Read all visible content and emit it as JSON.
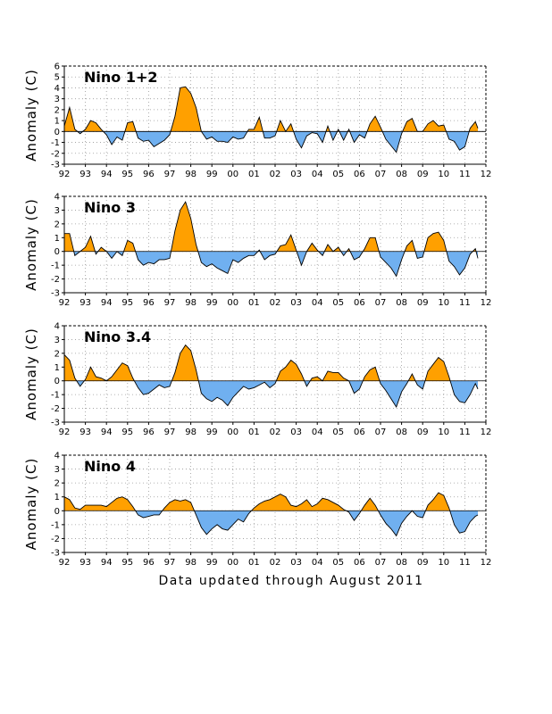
{
  "footer": "Data updated through August 2011",
  "colors": {
    "positive": "#ffa000",
    "negative": "#70b0f0",
    "line": "#000000",
    "grid": "#999999"
  },
  "chart_data": [
    {
      "type": "area",
      "title": "Nino 1+2",
      "ylabel": "Anomaly (C)",
      "ylim": [
        -3,
        6
      ],
      "yticks": [
        -3,
        -2,
        -1,
        0,
        1,
        2,
        3,
        4,
        5,
        6
      ],
      "xlim": [
        1992,
        2012
      ],
      "xticks": [
        "92",
        "93",
        "94",
        "95",
        "96",
        "97",
        "98",
        "99",
        "00",
        "01",
        "02",
        "03",
        "04",
        "05",
        "06",
        "07",
        "08",
        "09",
        "10",
        "11",
        "12"
      ],
      "grid": true,
      "x": [
        1992.0,
        1992.25,
        1992.5,
        1992.75,
        1993.0,
        1993.25,
        1993.5,
        1993.75,
        1994.0,
        1994.25,
        1994.5,
        1994.75,
        1995.0,
        1995.25,
        1995.5,
        1995.75,
        1996.0,
        1996.25,
        1996.5,
        1996.75,
        1997.0,
        1997.25,
        1997.5,
        1997.75,
        1998.0,
        1998.25,
        1998.5,
        1998.75,
        1999.0,
        1999.25,
        1999.5,
        1999.75,
        2000.0,
        2000.25,
        2000.5,
        2000.75,
        2001.0,
        2001.25,
        2001.5,
        2001.75,
        2002.0,
        2002.25,
        2002.5,
        2002.75,
        2003.0,
        2003.25,
        2003.5,
        2003.75,
        2004.0,
        2004.25,
        2004.5,
        2004.75,
        2005.0,
        2005.25,
        2005.5,
        2005.75,
        2006.0,
        2006.25,
        2006.5,
        2006.75,
        2007.0,
        2007.25,
        2007.5,
        2007.75,
        2008.0,
        2008.25,
        2008.5,
        2008.75,
        2009.0,
        2009.25,
        2009.5,
        2009.75,
        2010.0,
        2010.25,
        2010.5,
        2010.75,
        2011.0,
        2011.25,
        2011.5,
        2011.62
      ],
      "y": [
        0.5,
        2.2,
        0.2,
        -0.2,
        0.2,
        1.0,
        0.8,
        0.2,
        -0.3,
        -1.2,
        -0.5,
        -0.8,
        0.8,
        0.9,
        -0.6,
        -0.9,
        -0.8,
        -1.4,
        -1.1,
        -0.8,
        -0.3,
        1.4,
        4.0,
        4.1,
        3.5,
        2.2,
        0.0,
        -0.7,
        -0.5,
        -0.9,
        -0.9,
        -1.0,
        -0.5,
        -0.7,
        -0.6,
        0.2,
        0.2,
        1.3,
        -0.6,
        -0.6,
        -0.4,
        1.0,
        0.0,
        0.7,
        -0.7,
        -1.5,
        -0.4,
        -0.1,
        -0.2,
        -1.0,
        0.5,
        -0.8,
        0.2,
        -0.8,
        0.2,
        -1.0,
        -0.3,
        -0.6,
        0.7,
        1.4,
        0.4,
        -0.7,
        -1.3,
        -1.9,
        -0.2,
        0.9,
        1.2,
        0.0,
        0.0,
        0.7,
        1.0,
        0.5,
        0.6,
        -0.7,
        -0.9,
        -1.7,
        -1.4,
        0.3,
        0.9,
        0.3
      ]
    },
    {
      "type": "area",
      "title": "Nino 3",
      "ylabel": "Anomaly (C)",
      "ylim": [
        -3,
        4
      ],
      "yticks": [
        -3,
        -2,
        -1,
        0,
        1,
        2,
        3,
        4
      ],
      "xlim": [
        1992,
        2012
      ],
      "xticks": [
        "92",
        "93",
        "94",
        "95",
        "96",
        "97",
        "98",
        "99",
        "00",
        "01",
        "02",
        "03",
        "04",
        "05",
        "06",
        "07",
        "08",
        "09",
        "10",
        "11",
        "12"
      ],
      "grid": true,
      "x": [
        1992.0,
        1992.25,
        1992.5,
        1992.75,
        1993.0,
        1993.25,
        1993.5,
        1993.75,
        1994.0,
        1994.25,
        1994.5,
        1994.75,
        1995.0,
        1995.25,
        1995.5,
        1995.75,
        1996.0,
        1996.25,
        1996.5,
        1996.75,
        1997.0,
        1997.25,
        1997.5,
        1997.75,
        1998.0,
        1998.25,
        1998.5,
        1998.75,
        1999.0,
        1999.25,
        1999.5,
        1999.75,
        2000.0,
        2000.25,
        2000.5,
        2000.75,
        2001.0,
        2001.25,
        2001.5,
        2001.75,
        2002.0,
        2002.25,
        2002.5,
        2002.75,
        2003.0,
        2003.25,
        2003.5,
        2003.75,
        2004.0,
        2004.25,
        2004.5,
        2004.75,
        2005.0,
        2005.25,
        2005.5,
        2005.75,
        2006.0,
        2006.25,
        2006.5,
        2006.75,
        2007.0,
        2007.25,
        2007.5,
        2007.75,
        2008.0,
        2008.25,
        2008.5,
        2008.75,
        2009.0,
        2009.25,
        2009.5,
        2009.75,
        2010.0,
        2010.25,
        2010.5,
        2010.75,
        2011.0,
        2011.25,
        2011.5,
        2011.62
      ],
      "y": [
        1.3,
        1.3,
        -0.3,
        0.0,
        0.3,
        1.1,
        -0.2,
        0.3,
        0.0,
        -0.5,
        0.0,
        -0.3,
        0.8,
        0.6,
        -0.6,
        -1.0,
        -0.8,
        -0.9,
        -0.6,
        -0.6,
        -0.5,
        1.5,
        3.0,
        3.6,
        2.4,
        0.5,
        -0.8,
        -1.1,
        -0.9,
        -1.2,
        -1.4,
        -1.6,
        -0.6,
        -0.8,
        -0.5,
        -0.3,
        -0.3,
        0.1,
        -0.6,
        -0.3,
        -0.2,
        0.4,
        0.5,
        1.2,
        0.1,
        -1.0,
        0.0,
        0.6,
        0.1,
        -0.3,
        0.5,
        0.0,
        0.3,
        -0.3,
        0.2,
        -0.6,
        -0.4,
        0.2,
        1.0,
        1.0,
        -0.4,
        -0.8,
        -1.2,
        -1.8,
        -0.6,
        0.4,
        0.8,
        -0.5,
        -0.4,
        1.0,
        1.3,
        1.4,
        0.8,
        -0.7,
        -1.1,
        -1.7,
        -1.2,
        -0.2,
        0.2,
        -0.5
      ]
    },
    {
      "type": "area",
      "title": "Nino 3.4",
      "ylabel": "Anomaly (C)",
      "ylim": [
        -3,
        4
      ],
      "yticks": [
        -3,
        -2,
        -1,
        0,
        1,
        2,
        3,
        4
      ],
      "xlim": [
        1992,
        2012
      ],
      "xticks": [
        "92",
        "93",
        "94",
        "95",
        "96",
        "97",
        "98",
        "99",
        "00",
        "01",
        "02",
        "03",
        "04",
        "05",
        "06",
        "07",
        "08",
        "09",
        "10",
        "11",
        "12"
      ],
      "grid": true,
      "x": [
        1992.0,
        1992.25,
        1992.5,
        1992.75,
        1993.0,
        1993.25,
        1993.5,
        1993.75,
        1994.0,
        1994.25,
        1994.5,
        1994.75,
        1995.0,
        1995.25,
        1995.5,
        1995.75,
        1996.0,
        1996.25,
        1996.5,
        1996.75,
        1997.0,
        1997.25,
        1997.5,
        1997.75,
        1998.0,
        1998.25,
        1998.5,
        1998.75,
        1999.0,
        1999.25,
        1999.5,
        1999.75,
        2000.0,
        2000.25,
        2000.5,
        2000.75,
        2001.0,
        2001.25,
        2001.5,
        2001.75,
        2002.0,
        2002.25,
        2002.5,
        2002.75,
        2003.0,
        2003.25,
        2003.5,
        2003.75,
        2004.0,
        2004.25,
        2004.5,
        2004.75,
        2005.0,
        2005.25,
        2005.5,
        2005.75,
        2006.0,
        2006.25,
        2006.5,
        2006.75,
        2007.0,
        2007.25,
        2007.5,
        2007.75,
        2008.0,
        2008.25,
        2008.5,
        2008.75,
        2009.0,
        2009.25,
        2009.5,
        2009.75,
        2010.0,
        2010.25,
        2010.5,
        2010.75,
        2011.0,
        2011.25,
        2011.5,
        2011.62
      ],
      "y": [
        1.9,
        1.5,
        0.2,
        -0.4,
        0.1,
        1.0,
        0.3,
        0.2,
        0.0,
        0.3,
        0.8,
        1.3,
        1.1,
        0.2,
        -0.5,
        -1.0,
        -0.9,
        -0.6,
        -0.3,
        -0.5,
        -0.4,
        0.6,
        2.0,
        2.6,
        2.2,
        0.8,
        -0.9,
        -1.3,
        -1.5,
        -1.2,
        -1.4,
        -1.8,
        -1.2,
        -0.8,
        -0.4,
        -0.6,
        -0.5,
        -0.3,
        -0.1,
        -0.5,
        -0.2,
        0.7,
        1.0,
        1.5,
        1.2,
        0.5,
        -0.4,
        0.2,
        0.3,
        0.0,
        0.7,
        0.6,
        0.6,
        0.2,
        0.0,
        -0.9,
        -0.6,
        0.3,
        0.8,
        1.0,
        -0.2,
        -0.7,
        -1.3,
        -1.9,
        -0.8,
        -0.2,
        0.5,
        -0.3,
        -0.6,
        0.7,
        1.2,
        1.7,
        1.4,
        0.3,
        -1.0,
        -1.5,
        -1.6,
        -1.0,
        -0.2,
        -0.6
      ]
    },
    {
      "type": "area",
      "title": "Nino 4",
      "ylabel": "Anomaly (C)",
      "ylim": [
        -3,
        4
      ],
      "yticks": [
        -3,
        -2,
        -1,
        0,
        1,
        2,
        3,
        4
      ],
      "xlim": [
        1992,
        2012
      ],
      "xticks": [
        "92",
        "93",
        "94",
        "95",
        "96",
        "97",
        "98",
        "99",
        "00",
        "01",
        "02",
        "03",
        "04",
        "05",
        "06",
        "07",
        "08",
        "09",
        "10",
        "11",
        "12"
      ],
      "grid": true,
      "x": [
        1992.0,
        1992.25,
        1992.5,
        1992.75,
        1993.0,
        1993.25,
        1993.5,
        1993.75,
        1994.0,
        1994.25,
        1994.5,
        1994.75,
        1995.0,
        1995.25,
        1995.5,
        1995.75,
        1996.0,
        1996.25,
        1996.5,
        1996.75,
        1997.0,
        1997.25,
        1997.5,
        1997.75,
        1998.0,
        1998.25,
        1998.5,
        1998.75,
        1999.0,
        1999.25,
        1999.5,
        1999.75,
        2000.0,
        2000.25,
        2000.5,
        2000.75,
        2001.0,
        2001.25,
        2001.5,
        2001.75,
        2002.0,
        2002.25,
        2002.5,
        2002.75,
        2003.0,
        2003.25,
        2003.5,
        2003.75,
        2004.0,
        2004.25,
        2004.5,
        2004.75,
        2005.0,
        2005.25,
        2005.5,
        2005.75,
        2006.0,
        2006.25,
        2006.5,
        2006.75,
        2007.0,
        2007.25,
        2007.5,
        2007.75,
        2008.0,
        2008.25,
        2008.5,
        2008.75,
        2009.0,
        2009.25,
        2009.5,
        2009.75,
        2010.0,
        2010.25,
        2010.5,
        2010.75,
        2011.0,
        2011.25,
        2011.5,
        2011.62
      ],
      "y": [
        1.0,
        0.8,
        0.2,
        0.1,
        0.4,
        0.4,
        0.4,
        0.4,
        0.3,
        0.6,
        0.9,
        1.0,
        0.8,
        0.3,
        -0.3,
        -0.5,
        -0.4,
        -0.3,
        -0.3,
        0.2,
        0.6,
        0.8,
        0.7,
        0.8,
        0.6,
        -0.3,
        -1.2,
        -1.7,
        -1.3,
        -1.0,
        -1.3,
        -1.4,
        -1.0,
        -0.6,
        -0.8,
        -0.2,
        0.2,
        0.5,
        0.7,
        0.8,
        1.0,
        1.2,
        1.0,
        0.4,
        0.3,
        0.5,
        0.8,
        0.3,
        0.5,
        0.9,
        0.8,
        0.6,
        0.4,
        0.1,
        -0.1,
        -0.7,
        -0.2,
        0.4,
        0.9,
        0.4,
        -0.3,
        -0.9,
        -1.3,
        -1.8,
        -0.9,
        -0.4,
        0.0,
        -0.4,
        -0.5,
        0.4,
        0.8,
        1.3,
        1.1,
        0.2,
        -1.0,
        -1.6,
        -1.5,
        -0.8,
        -0.4,
        -0.3
      ]
    }
  ]
}
